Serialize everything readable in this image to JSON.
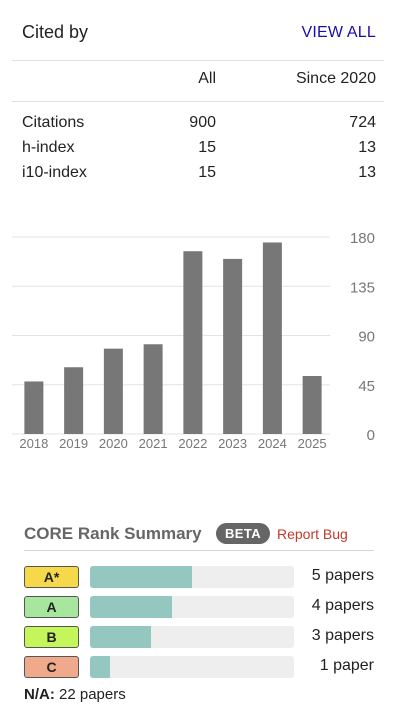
{
  "cited_by": {
    "title": "Cited by",
    "view_all": "VIEW ALL",
    "columns": [
      "",
      "All",
      "Since 2020"
    ],
    "rows": [
      {
        "label": "Citations",
        "all": "900",
        "since": "724"
      },
      {
        "label": "h-index",
        "all": "15",
        "since": "13"
      },
      {
        "label": "i10-index",
        "all": "15",
        "since": "13"
      }
    ]
  },
  "chart_data": {
    "type": "bar",
    "categories": [
      "2018",
      "2019",
      "2020",
      "2021",
      "2022",
      "2023",
      "2024",
      "2025"
    ],
    "values": [
      48,
      61,
      78,
      82,
      167,
      160,
      175,
      53
    ],
    "yticks": [
      "0",
      "45",
      "90",
      "135",
      "180"
    ],
    "ylim": [
      0,
      180
    ],
    "bar_color": "#777777",
    "grid": true,
    "y_axis_position": "right"
  },
  "core_rank": {
    "title": "CORE Rank Summary",
    "beta": "BETA",
    "report_bug": "Report Bug",
    "ranks": [
      {
        "label": "A*",
        "count": "5 papers",
        "value": 5,
        "color": "#f5d94a"
      },
      {
        "label": "A",
        "count": "4 papers",
        "value": 4,
        "color": "#a8e6a0"
      },
      {
        "label": "B",
        "count": "3 papers",
        "value": 3,
        "color": "#c4f55a"
      },
      {
        "label": "C",
        "count": "1 paper",
        "value": 1,
        "color": "#f0a98a"
      }
    ],
    "bar_color": "#93c7bf",
    "na_label": "N/A:",
    "na_count": "22 papers"
  }
}
